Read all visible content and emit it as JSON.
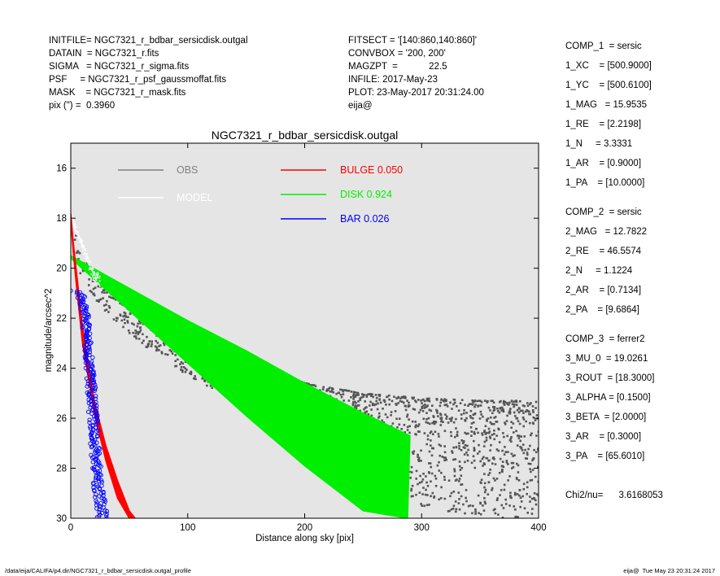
{
  "header_left": [
    "INITFILE= NGC7321_r_bdbar_sersicdisk.outgal",
    "DATAIN  = NGC7321_r.fits",
    "SIGMA   = NGC7321_r_sigma.fits",
    "PSF     = NGC7321_r_psf_gaussmoffat.fits",
    "MASK    = NGC7321_r_mask.fits",
    "pix (\") =  0.3960"
  ],
  "header_middle": [
    "FITSECT = '[140:860,140:860]'",
    "CONVBOX = '200, 200'",
    "MAGZPT  =            22.5",
    "INFILE: 2017-May-23",
    "PLOT: 23-May-2017 20:31:24.00",
    "eija@"
  ],
  "components": [
    "COMP_1  = sersic",
    "1_XC    = [500.9000]",
    "1_YC    = [500.6100]",
    "1_MAG   = 15.9535",
    "1_RE    = [2.2198]",
    "1_N     = 3.3331",
    "1_AR    = [0.9000]",
    "1_PA    = [10.0000]",
    "COMP_2  = sersic",
    "2_MAG   = 12.7822",
    "2_RE    = 46.5574",
    "2_N     = 1.1224",
    "2_AR    = [0.7134]",
    "2_PA    = [9.6864]",
    "COMP_3  = ferrer2",
    "3_MU_0  = 19.0261",
    "3_ROUT  = [18.3000]",
    "3_ALPHA = [0.1500]",
    "3_BETA  = [2.0000]",
    "3_AR    = [0.3000]",
    "3_PA    = [65.6010]",
    "Chi2/nu=      3.6168053"
  ],
  "footer": {
    "path": "/data/eija/CALIFA/p4.dir/NGC7321_r_bdbar_sersicdisk.outgal_profile",
    "stamp": "eija@  Tue May 23 20:31:24 2017"
  },
  "colors": {
    "plot_bg": "#e5e5e5",
    "obs": "#555555",
    "obs_legend": "#808080",
    "model": "#ffffff",
    "bulge": "#ff0000",
    "disk": "#00ee00",
    "bar": "#0000ff"
  },
  "chart_data": {
    "type": "scatter",
    "title": "NGC7321_r_bdbar_sersicdisk.outgal",
    "xlabel": "Distance along sky [pix]",
    "ylabel": "magnitude/arcsec^2",
    "xlim": [
      0,
      400
    ],
    "ylim": [
      30,
      15
    ],
    "y_inverted": true,
    "x_ticks": [
      0,
      100,
      200,
      300,
      400
    ],
    "y_ticks": [
      16,
      18,
      20,
      22,
      24,
      26,
      28,
      30
    ],
    "grid": false,
    "legend": [
      {
        "label": "OBS",
        "color": "#808080"
      },
      {
        "label": "MODEL",
        "color": "#ffffff"
      },
      {
        "label": "BULGE  0.050",
        "color": "#ff0000"
      },
      {
        "label": "DISK  0.924",
        "color": "#00ee00"
      },
      {
        "label": "BAR  0.026",
        "color": "#0000ff"
      }
    ],
    "series": [
      {
        "name": "OBS",
        "kind": "points",
        "envelope": {
          "r": [
            0,
            10,
            30,
            60,
            100,
            150,
            200,
            250,
            300,
            350,
            400
          ],
          "bright": [
            17.8,
            19.6,
            20.4,
            21.4,
            22.5,
            23.6,
            24.6,
            25.0,
            25.2,
            25.3,
            25.3
          ],
          "faint": [
            18.5,
            20.6,
            21.8,
            23.0,
            24.3,
            25.6,
            26.8,
            28.2,
            29.5,
            30.0,
            30.0
          ]
        }
      },
      {
        "name": "MODEL",
        "kind": "points",
        "envelope": {
          "r": [
            0,
            20,
            50,
            100,
            150,
            200,
            250,
            290
          ],
          "bright": [
            17.8,
            20.1,
            20.8,
            22.1,
            23.3,
            24.5,
            25.7,
            26.6
          ],
          "faint": [
            18.0,
            20.6,
            21.6,
            23.8,
            25.9,
            27.9,
            29.6,
            30.0
          ]
        }
      },
      {
        "name": "BULGE",
        "kind": "band",
        "upper": {
          "r": [
            0,
            2,
            5,
            10,
            20,
            30,
            40,
            50,
            55
          ],
          "mu": [
            17.8,
            18.9,
            20.2,
            22.3,
            25.3,
            27.1,
            28.5,
            29.7,
            30.0
          ]
        },
        "lower": {
          "r": [
            0,
            2,
            5,
            10,
            20,
            30,
            40,
            50,
            55
          ],
          "mu": [
            18.1,
            19.3,
            20.8,
            23.0,
            25.8,
            27.7,
            29.2,
            30.0,
            30.0
          ]
        }
      },
      {
        "name": "DISK",
        "kind": "band",
        "upper": {
          "r": [
            0,
            50,
            100,
            150,
            200,
            250,
            290
          ],
          "mu": [
            19.5,
            20.8,
            22.1,
            23.3,
            24.6,
            25.8,
            26.7
          ]
        },
        "lower": {
          "r": [
            0,
            50,
            100,
            150,
            200,
            250,
            288
          ],
          "mu": [
            19.6,
            21.7,
            23.8,
            25.9,
            27.9,
            29.7,
            30.0
          ]
        }
      },
      {
        "name": "BAR",
        "kind": "band",
        "upper": {
          "r": [
            0,
            4,
            8,
            12,
            16,
            20,
            24,
            28,
            32
          ],
          "mu": [
            20.9,
            20.9,
            20.95,
            21.1,
            22.0,
            24.0,
            26.5,
            28.8,
            30.0
          ]
        },
        "lower": {
          "r": [
            0,
            4,
            8,
            12,
            14,
            16,
            18,
            20,
            22
          ],
          "mu": [
            20.9,
            21.0,
            21.5,
            23.5,
            25.0,
            26.5,
            28.0,
            29.3,
            30.0
          ]
        }
      }
    ]
  }
}
